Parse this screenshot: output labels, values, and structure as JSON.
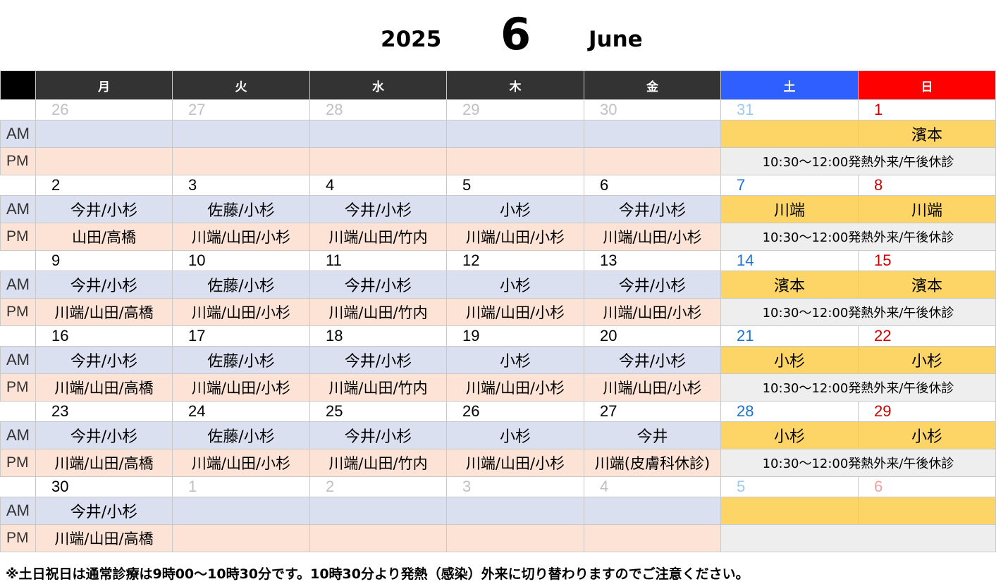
{
  "title": {
    "year": "2025",
    "month": "6",
    "month_name": "June"
  },
  "weekdays": [
    "月",
    "火",
    "水",
    "木",
    "金",
    "土",
    "日"
  ],
  "am_label": "AM",
  "pm_label": "PM",
  "weekend_pm": "10:30～12:00発熱外来/午後休診",
  "weeks": [
    {
      "dates": [
        "26",
        "27",
        "28",
        "29",
        "30",
        "31",
        "1"
      ],
      "current": [
        false,
        false,
        false,
        false,
        false,
        false,
        true
      ],
      "am": [
        "",
        "",
        "",
        "",
        "",
        "",
        "濱本"
      ],
      "pm": [
        "",
        "",
        "",
        "",
        ""
      ]
    },
    {
      "dates": [
        "2",
        "3",
        "4",
        "5",
        "6",
        "7",
        "8"
      ],
      "current": [
        true,
        true,
        true,
        true,
        true,
        true,
        true
      ],
      "am": [
        "今井/小杉",
        "佐藤/小杉",
        "今井/小杉",
        "小杉",
        "今井/小杉",
        "川端",
        "川端"
      ],
      "pm": [
        "山田/高橋",
        "川端/山田/小杉",
        "川端/山田/竹内",
        "川端/山田/小杉",
        "川端/山田/小杉"
      ]
    },
    {
      "dates": [
        "9",
        "10",
        "11",
        "12",
        "13",
        "14",
        "15"
      ],
      "current": [
        true,
        true,
        true,
        true,
        true,
        true,
        true
      ],
      "am": [
        "今井/小杉",
        "佐藤/小杉",
        "今井/小杉",
        "小杉",
        "今井/小杉",
        "濱本",
        "濱本"
      ],
      "pm": [
        "川端/山田/高橋",
        "川端/山田/小杉",
        "川端/山田/竹内",
        "川端/山田/小杉",
        "川端/山田/小杉"
      ]
    },
    {
      "dates": [
        "16",
        "17",
        "18",
        "19",
        "20",
        "21",
        "22"
      ],
      "current": [
        true,
        true,
        true,
        true,
        true,
        true,
        true
      ],
      "am": [
        "今井/小杉",
        "佐藤/小杉",
        "今井/小杉",
        "小杉",
        "今井/小杉",
        "小杉",
        "小杉"
      ],
      "pm": [
        "川端/山田/高橋",
        "川端/山田/小杉",
        "川端/山田/竹内",
        "川端/山田/小杉",
        "川端/山田/小杉"
      ]
    },
    {
      "dates": [
        "23",
        "24",
        "25",
        "26",
        "27",
        "28",
        "29"
      ],
      "current": [
        true,
        true,
        true,
        true,
        true,
        true,
        true
      ],
      "am": [
        "今井/小杉",
        "佐藤/小杉",
        "今井/小杉",
        "小杉",
        "今井",
        "小杉",
        "小杉"
      ],
      "pm": [
        "川端/山田/高橋",
        "川端/山田/小杉",
        "川端/山田/竹内",
        "川端/山田/小杉",
        "川端(皮膚科休診)"
      ]
    },
    {
      "dates": [
        "30",
        "1",
        "2",
        "3",
        "4",
        "5",
        "6"
      ],
      "current": [
        true,
        false,
        false,
        false,
        false,
        false,
        false
      ],
      "am": [
        "今井/小杉",
        "",
        "",
        "",
        "",
        "",
        ""
      ],
      "pm": [
        "川端/山田/高橋",
        "",
        "",
        "",
        ""
      ],
      "no_weekend_pm": true
    }
  ],
  "note": "※土日祝日は通常診療は9時00～10時30分です。10時30分より発熱（感染）外来に切り替わりますのでご注意ください。",
  "colors": {
    "header_bg": "#333333",
    "saturday_header": "#2f5fff",
    "sunday_header": "#ff0000",
    "am_bg": "#dae0f0",
    "pm_bg": "#fce3d6",
    "weekend_am_bg": "#fdd567",
    "weekend_pm_bg": "#eeeeee",
    "saturday_text": "#1a73d1",
    "sunday_text": "#cc0000",
    "other_month_text": "#c0c0c0"
  }
}
